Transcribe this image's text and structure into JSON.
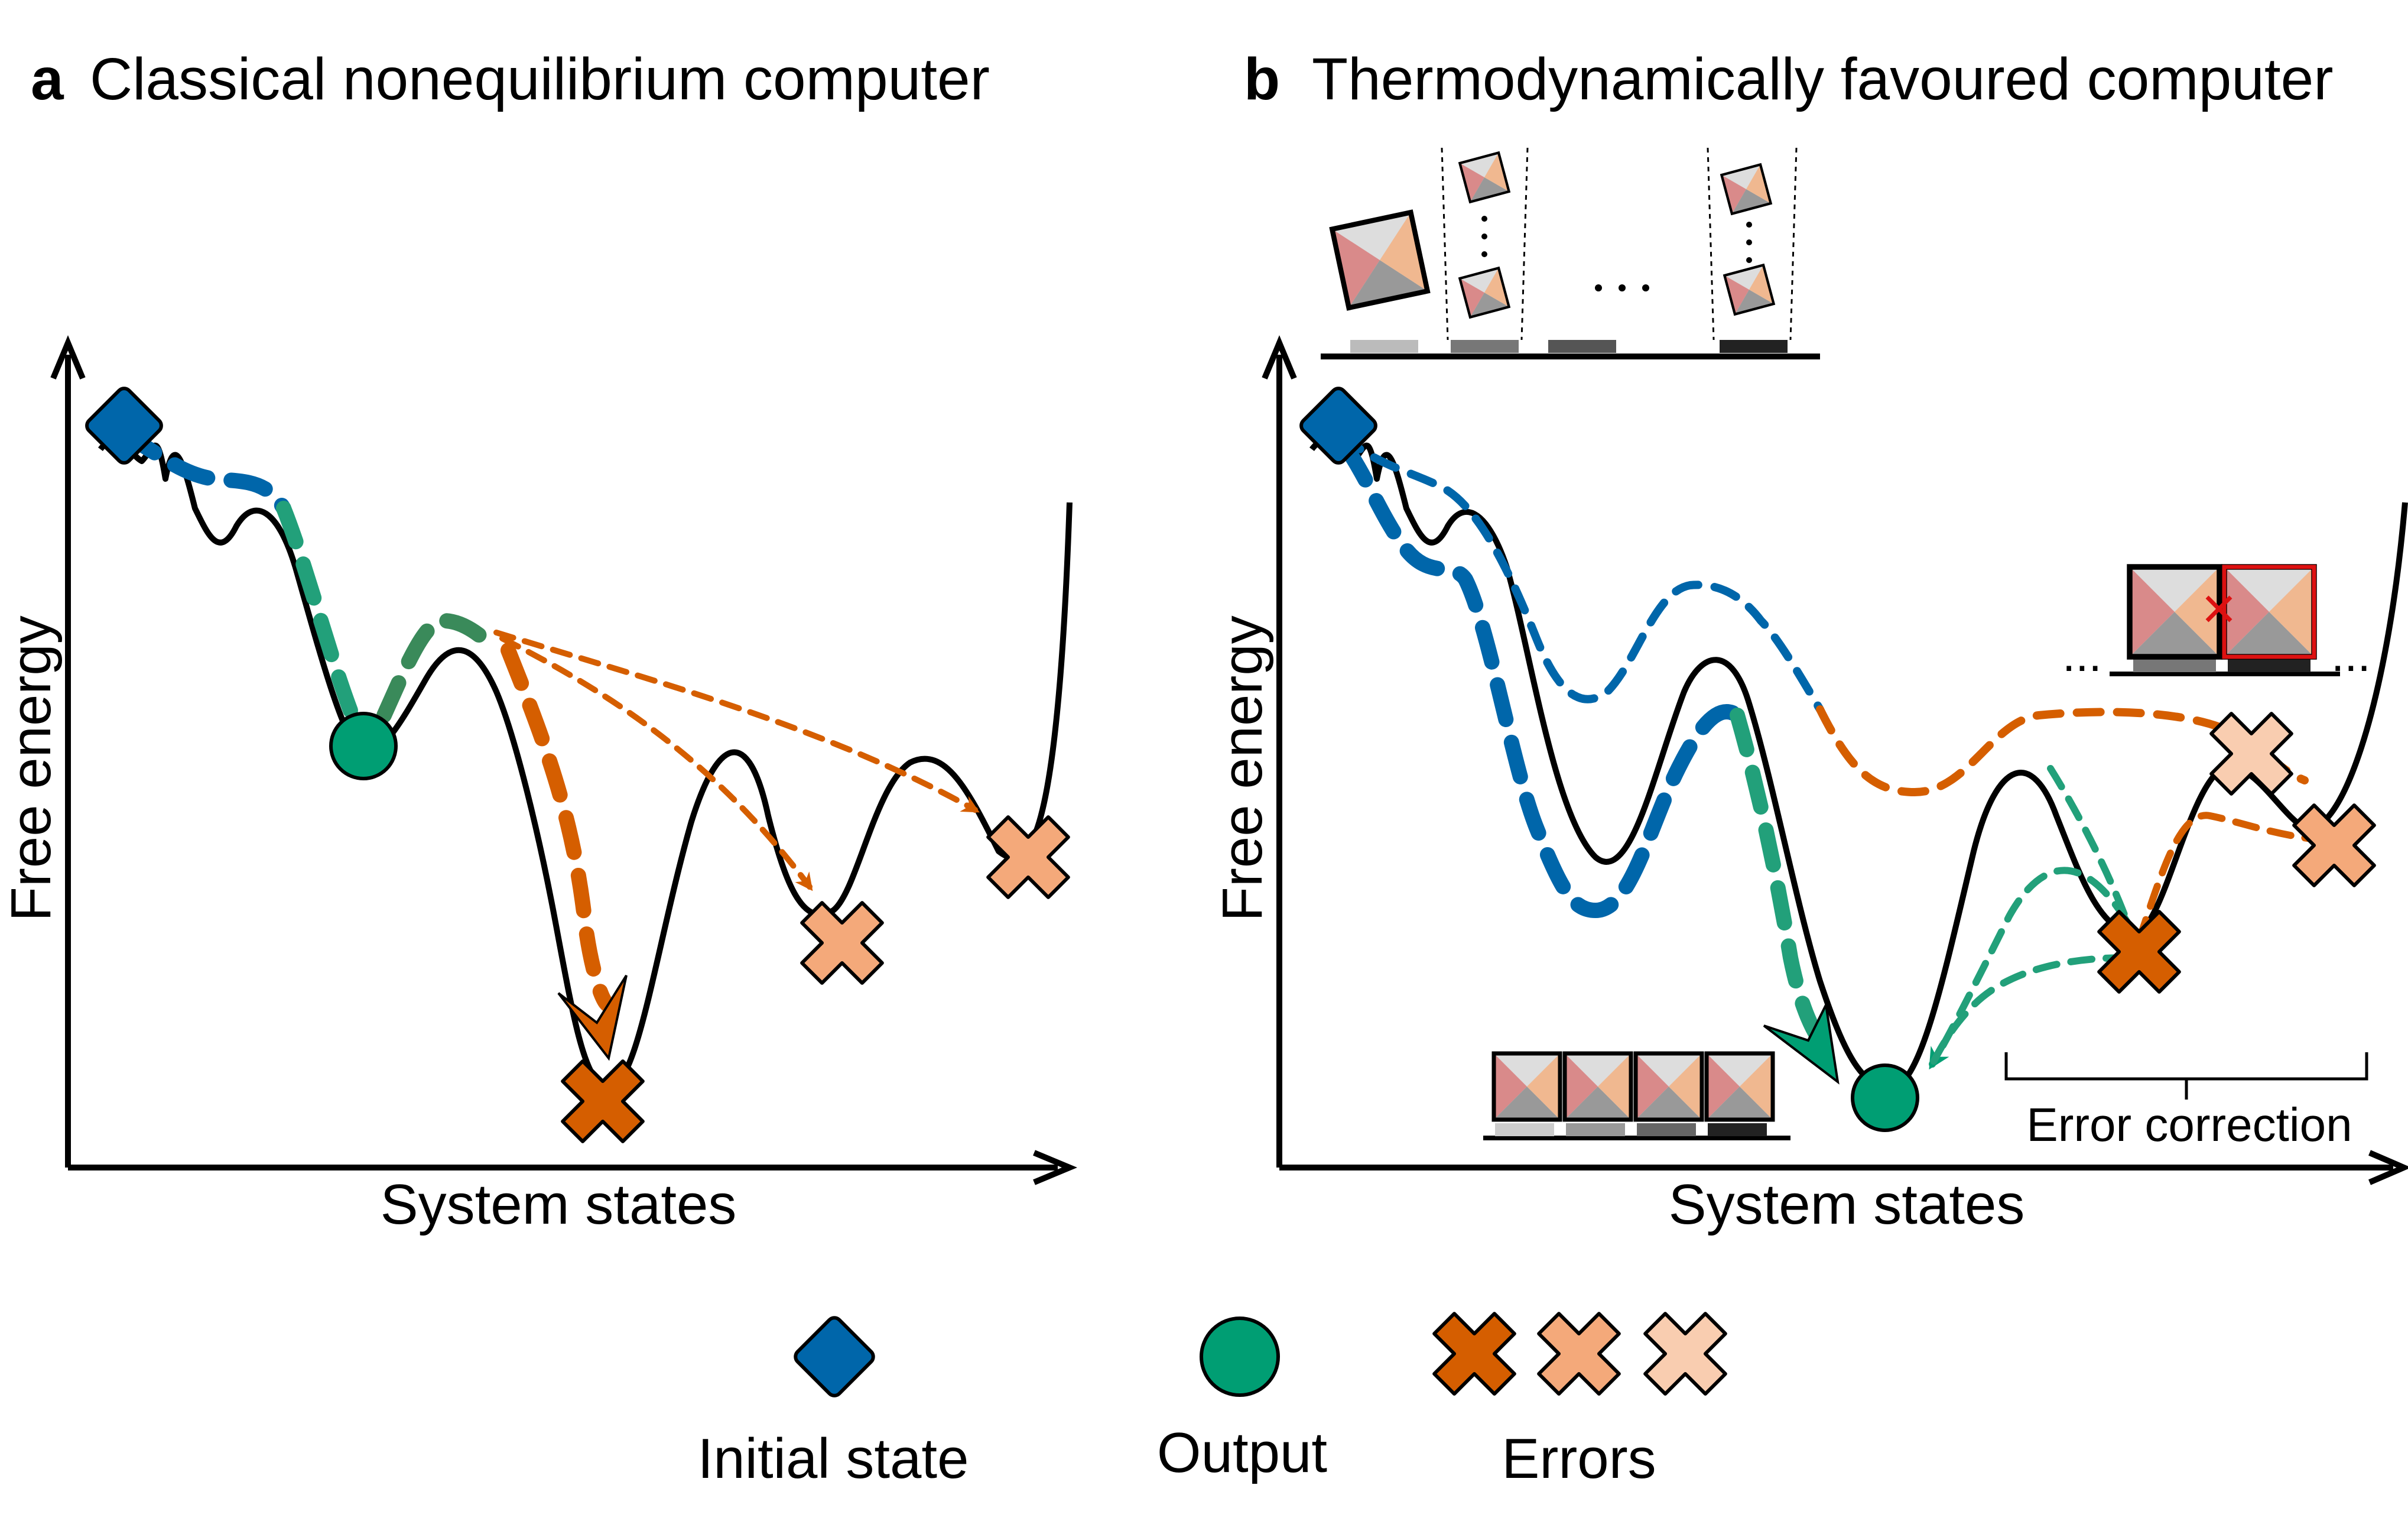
{
  "panel_a": {
    "letter": "a",
    "title": "Classical nonequilibrium computer",
    "ylabel": "Free energy",
    "xlabel": "System states"
  },
  "panel_b": {
    "letter": "b",
    "title": "Thermodynamically favoured computer",
    "ylabel": "Free energy",
    "xlabel": "System states",
    "error_correction_label": "Error correction",
    "ellipsis": "..."
  },
  "legend": {
    "initial_state": "Initial state",
    "output": "Output",
    "errors": "Errors"
  },
  "colors": {
    "initial_blue": "#0066aa",
    "output_green": "#009e73",
    "error_dark": "#d55e00",
    "error_mid": "#f4a97a",
    "error_light": "#f9cdb0",
    "error_mark_red": "#dd1111"
  },
  "icons": [
    "initial-state-diamond-icon",
    "output-circle-icon",
    "error-cross-icon",
    "tile-icon"
  ]
}
